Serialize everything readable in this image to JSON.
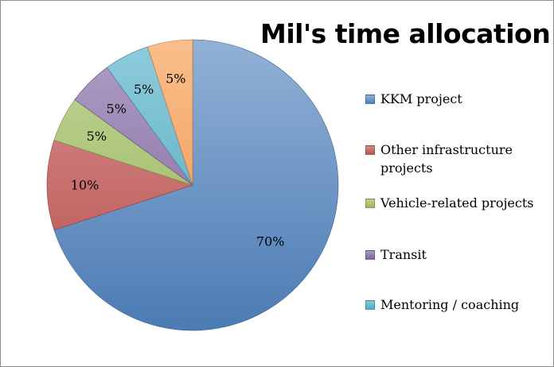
{
  "chart_data": {
    "type": "pie",
    "title": "Mil's time allocation",
    "start_angle_deg": 0,
    "direction": "clockwise",
    "legend_position": "right",
    "slices": [
      {
        "label": "KKM project",
        "value": 70,
        "display": "70%",
        "color": "#4f81bd"
      },
      {
        "label": "Other infrastructure projects",
        "value": 10,
        "display": "10%",
        "color": "#c0504d"
      },
      {
        "label": "Vehicle-related projects",
        "value": 5,
        "display": "5%",
        "color": "#9bbb59"
      },
      {
        "label": "Transit",
        "value": 5,
        "display": "5%",
        "color": "#8064a2"
      },
      {
        "label": "Mentoring / coaching",
        "value": 5,
        "display": "5%",
        "color": "#4bacc6"
      },
      {
        "label": "",
        "value": 5,
        "display": "5%",
        "color": "#f79646"
      }
    ],
    "legend": [
      {
        "label": "KKM project",
        "color": "#4f81bd"
      },
      {
        "label": "Other infrastructure projects",
        "color": "#c0504d"
      },
      {
        "label": "Vehicle-related projects",
        "color": "#9bbb59"
      },
      {
        "label": "Transit",
        "color": "#8064a2"
      },
      {
        "label": "Mentoring / coaching",
        "color": "#4bacc6"
      }
    ]
  }
}
